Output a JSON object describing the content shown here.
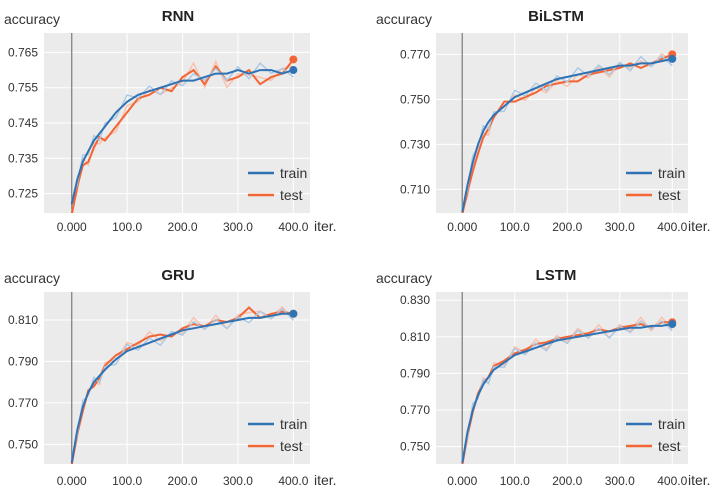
{
  "colors": {
    "train": "#2f73b4",
    "test": "#f26535",
    "train_light": "#a9c8e4",
    "test_light": "#f9c0ab",
    "plot_bg": "#ebebeb",
    "grid": "#ffffff",
    "zero_line": "#8a8a8a"
  },
  "chart_data": [
    {
      "type": "line",
      "title": "RNN",
      "ylabel": "accuracy",
      "x_suffix": "iter.",
      "xlim": [
        -50,
        430
      ],
      "ylim": [
        0.7195,
        0.7705
      ],
      "xticks": [
        0,
        100,
        200,
        300,
        400
      ],
      "xtick_labels": [
        "0.000",
        "100.0",
        "200.0",
        "300.0",
        "400.0"
      ],
      "yticks": [
        0.725,
        0.735,
        0.745,
        0.755,
        0.765
      ],
      "ytick_labels": [
        "0.725",
        "0.735",
        "0.745",
        "0.755",
        "0.765"
      ],
      "series": [
        {
          "name": "train",
          "x": [
            0,
            10,
            20,
            30,
            40,
            50,
            60,
            80,
            100,
            120,
            140,
            160,
            180,
            200,
            220,
            240,
            260,
            280,
            300,
            320,
            340,
            360,
            380,
            400
          ],
          "y": [
            0.722,
            0.729,
            0.734,
            0.737,
            0.74,
            0.742,
            0.744,
            0.748,
            0.751,
            0.753,
            0.754,
            0.755,
            0.756,
            0.757,
            0.757,
            0.758,
            0.759,
            0.759,
            0.76,
            0.759,
            0.76,
            0.76,
            0.759,
            0.76
          ]
        },
        {
          "name": "test",
          "x": [
            0,
            10,
            20,
            30,
            40,
            50,
            60,
            80,
            100,
            120,
            140,
            160,
            180,
            200,
            220,
            240,
            260,
            280,
            300,
            320,
            340,
            360,
            380,
            400
          ],
          "y": [
            0.719,
            0.727,
            0.733,
            0.734,
            0.738,
            0.741,
            0.74,
            0.744,
            0.748,
            0.752,
            0.753,
            0.755,
            0.754,
            0.758,
            0.76,
            0.756,
            0.761,
            0.757,
            0.758,
            0.76,
            0.756,
            0.758,
            0.759,
            0.763
          ]
        }
      ]
    },
    {
      "type": "line",
      "title": "BiLSTM",
      "ylabel": "accuracy",
      "x_suffix": "iter.",
      "xlim": [
        -50,
        430
      ],
      "ylim": [
        0.6995,
        0.7795
      ],
      "xticks": [
        0,
        100,
        200,
        300,
        400
      ],
      "xtick_labels": [
        "0.000",
        "100.0",
        "200.0",
        "300.0",
        "400.0"
      ],
      "yticks": [
        0.71,
        0.73,
        0.75,
        0.77
      ],
      "ytick_labels": [
        "0.710",
        "0.730",
        "0.750",
        "0.770"
      ],
      "series": [
        {
          "name": "train",
          "x": [
            0,
            10,
            20,
            30,
            40,
            50,
            60,
            80,
            100,
            120,
            140,
            160,
            180,
            200,
            220,
            240,
            260,
            280,
            300,
            320,
            340,
            360,
            380,
            400
          ],
          "y": [
            0.7,
            0.712,
            0.722,
            0.73,
            0.736,
            0.74,
            0.743,
            0.747,
            0.751,
            0.753,
            0.755,
            0.757,
            0.759,
            0.76,
            0.761,
            0.762,
            0.763,
            0.764,
            0.765,
            0.765,
            0.766,
            0.766,
            0.767,
            0.768
          ]
        },
        {
          "name": "test",
          "x": [
            0,
            10,
            20,
            30,
            40,
            50,
            60,
            80,
            100,
            120,
            140,
            160,
            180,
            200,
            220,
            240,
            260,
            280,
            300,
            320,
            340,
            360,
            380,
            400
          ],
          "y": [
            0.699,
            0.709,
            0.718,
            0.726,
            0.733,
            0.737,
            0.742,
            0.749,
            0.749,
            0.751,
            0.753,
            0.756,
            0.757,
            0.758,
            0.758,
            0.761,
            0.762,
            0.763,
            0.764,
            0.766,
            0.764,
            0.766,
            0.768,
            0.77
          ]
        }
      ]
    },
    {
      "type": "line",
      "title": "GRU",
      "ylabel": "accuracy",
      "x_suffix": "iter.",
      "xlim": [
        -50,
        430
      ],
      "ylim": [
        0.7405,
        0.8235
      ],
      "xticks": [
        0,
        100,
        200,
        300,
        400
      ],
      "xtick_labels": [
        "0.000",
        "100.0",
        "200.0",
        "300.0",
        "400.0"
      ],
      "yticks": [
        0.75,
        0.77,
        0.79,
        0.81
      ],
      "ytick_labels": [
        "0.750",
        "0.770",
        "0.790",
        "0.810"
      ],
      "series": [
        {
          "name": "train",
          "x": [
            0,
            10,
            20,
            30,
            40,
            50,
            60,
            80,
            100,
            120,
            140,
            160,
            180,
            200,
            220,
            240,
            260,
            280,
            300,
            320,
            340,
            360,
            380,
            400
          ],
          "y": [
            0.741,
            0.757,
            0.768,
            0.775,
            0.78,
            0.783,
            0.786,
            0.791,
            0.795,
            0.797,
            0.799,
            0.801,
            0.803,
            0.805,
            0.806,
            0.807,
            0.808,
            0.809,
            0.81,
            0.811,
            0.811,
            0.812,
            0.813,
            0.813
          ]
        },
        {
          "name": "test",
          "x": [
            0,
            10,
            20,
            30,
            40,
            50,
            60,
            80,
            100,
            120,
            140,
            160,
            180,
            200,
            220,
            240,
            260,
            280,
            300,
            320,
            340,
            360,
            380,
            400
          ],
          "y": [
            0.74,
            0.755,
            0.766,
            0.776,
            0.778,
            0.782,
            0.788,
            0.793,
            0.796,
            0.799,
            0.802,
            0.803,
            0.802,
            0.806,
            0.808,
            0.807,
            0.81,
            0.809,
            0.811,
            0.816,
            0.811,
            0.813,
            0.814,
            0.813
          ]
        }
      ]
    },
    {
      "type": "line",
      "title": "LSTM",
      "ylabel": "accuracy",
      "x_suffix": "iter.",
      "xlim": [
        -50,
        430
      ],
      "ylim": [
        0.7405,
        0.8345
      ],
      "xticks": [
        0,
        100,
        200,
        300,
        400
      ],
      "xtick_labels": [
        "0.000",
        "100.0",
        "200.0",
        "300.0",
        "400.0"
      ],
      "yticks": [
        0.75,
        0.77,
        0.79,
        0.81,
        0.83
      ],
      "ytick_labels": [
        "0.750",
        "0.770",
        "0.790",
        "0.810",
        "0.830"
      ],
      "series": [
        {
          "name": "train",
          "x": [
            0,
            10,
            20,
            30,
            40,
            50,
            60,
            80,
            100,
            120,
            140,
            160,
            180,
            200,
            220,
            240,
            260,
            280,
            300,
            320,
            340,
            360,
            380,
            400
          ],
          "y": [
            0.741,
            0.758,
            0.77,
            0.778,
            0.784,
            0.788,
            0.792,
            0.796,
            0.8,
            0.802,
            0.804,
            0.806,
            0.808,
            0.809,
            0.81,
            0.811,
            0.812,
            0.813,
            0.814,
            0.815,
            0.815,
            0.816,
            0.816,
            0.817
          ]
        },
        {
          "name": "test",
          "x": [
            0,
            10,
            20,
            30,
            40,
            50,
            60,
            80,
            100,
            120,
            140,
            160,
            180,
            200,
            220,
            240,
            260,
            280,
            300,
            320,
            340,
            360,
            380,
            400
          ],
          "y": [
            0.74,
            0.756,
            0.769,
            0.779,
            0.785,
            0.788,
            0.794,
            0.797,
            0.801,
            0.803,
            0.806,
            0.807,
            0.809,
            0.81,
            0.811,
            0.812,
            0.814,
            0.813,
            0.815,
            0.816,
            0.817,
            0.815,
            0.818,
            0.818
          ]
        }
      ]
    }
  ]
}
